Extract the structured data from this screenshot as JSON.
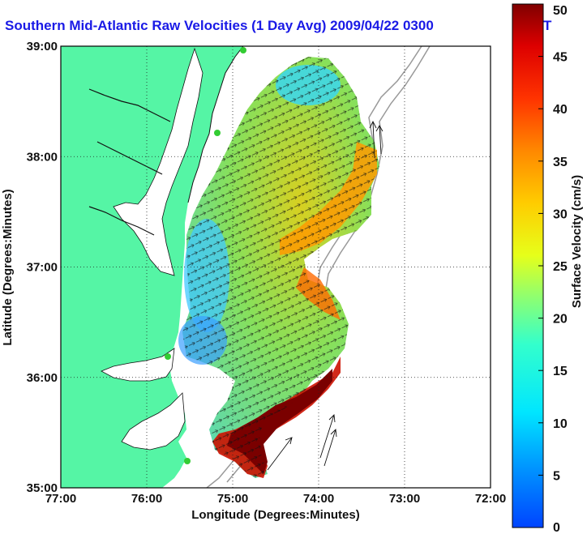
{
  "chart_data": {
    "type": "heatmap",
    "title": "Southern Mid-Atlantic Raw Velocities (1 Day Avg) 2009/04/22 0300",
    "title_tail": "T",
    "xlabel": "Longitude (Degrees:Minutes)",
    "ylabel": "Latitude (Degrees:Minutes)",
    "x_ticks": [
      "77:00",
      "76:00",
      "75:00",
      "74:00",
      "73:00",
      "72:00"
    ],
    "y_ticks": [
      "39:00",
      "38:00",
      "37:00",
      "36:00",
      "35:00"
    ],
    "xlim": [
      -77,
      -72
    ],
    "ylim": [
      35,
      39
    ],
    "grid": true,
    "colorbar": {
      "label": "Surface Velocity (cm/s)",
      "range": [
        0,
        50
      ],
      "ticks": [
        "50",
        "45",
        "40",
        "35",
        "30",
        "25",
        "20",
        "15",
        "10",
        "5",
        "0"
      ],
      "colormap": "jet"
    },
    "land_color": "#55f5a5",
    "station_color": "#33cc33"
  }
}
